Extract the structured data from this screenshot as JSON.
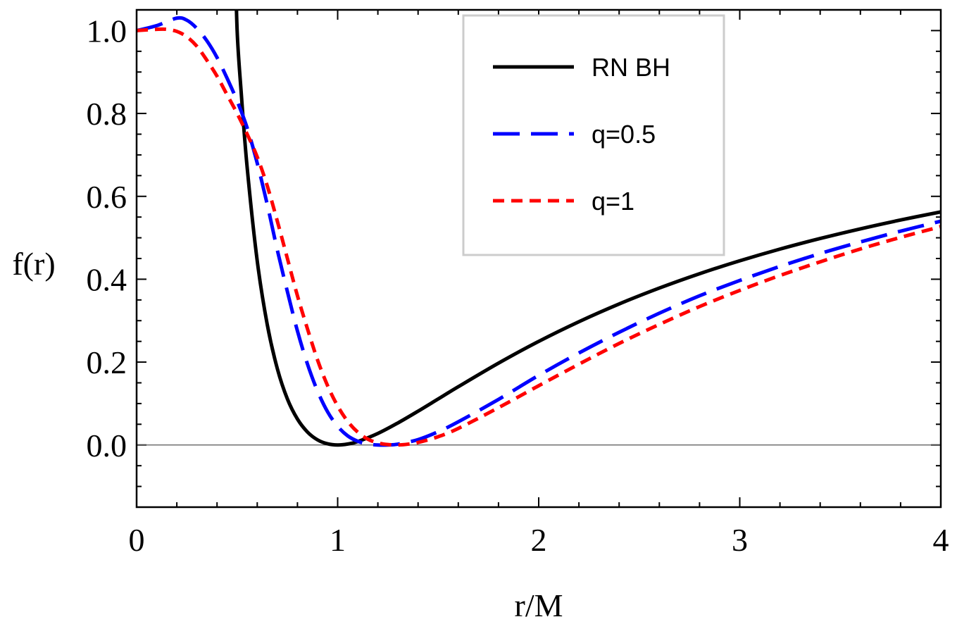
{
  "chart_data": {
    "type": "line",
    "title": "",
    "xlabel": "r/M",
    "ylabel": "f(r)",
    "xlim": [
      0,
      4
    ],
    "ylim": [
      -0.15,
      1.05
    ],
    "x_ticks": [
      {
        "value": 0,
        "label": "0"
      },
      {
        "value": 1,
        "label": "1"
      },
      {
        "value": 2,
        "label": "2"
      },
      {
        "value": 3,
        "label": "3"
      },
      {
        "value": 4,
        "label": "4"
      }
    ],
    "y_ticks": [
      {
        "value": 0.0,
        "label": "0.0"
      },
      {
        "value": 0.2,
        "label": "0.2"
      },
      {
        "value": 0.4,
        "label": "0.4"
      },
      {
        "value": 0.6,
        "label": "0.6"
      },
      {
        "value": 0.8,
        "label": "0.8"
      },
      {
        "value": 1.0,
        "label": "1.0"
      }
    ],
    "x_minor_step": 0.2,
    "y_minor_step": 0.05,
    "reference_line_y": 0,
    "grid": false,
    "legend_position": "top-center",
    "series": [
      {
        "name": "RN BH",
        "color": "#000000",
        "dash": "solid",
        "x": [
          0.5,
          0.52,
          0.55,
          0.6,
          0.65,
          0.7,
          0.75,
          0.8,
          0.85,
          0.9,
          0.95,
          1.0,
          1.05,
          1.1,
          1.2,
          1.3,
          1.4,
          1.5,
          1.6,
          1.8,
          2.0,
          2.2,
          2.4,
          2.6,
          2.8,
          3.0,
          3.2,
          3.4,
          3.6,
          3.8,
          4.0
        ],
        "y": [
          1.0,
          0.852,
          0.669,
          0.444,
          0.29,
          0.184,
          0.111,
          0.0625,
          0.0311,
          0.0123,
          0.0028,
          0.0,
          0.0023,
          0.0083,
          0.0278,
          0.0533,
          0.0816,
          0.1111,
          0.1406,
          0.1975,
          0.25,
          0.2975,
          0.3403,
          0.3787,
          0.4133,
          0.4444,
          0.4727,
          0.4983,
          0.5216,
          0.5429,
          0.5625
        ]
      },
      {
        "name": "q=0.5",
        "color": "#0000ff",
        "dash": "long-dash",
        "x": [
          0,
          0.1,
          0.2,
          0.25,
          0.3,
          0.35,
          0.4,
          0.45,
          0.5,
          0.55,
          0.6,
          0.65,
          0.7,
          0.75,
          0.8,
          0.85,
          0.9,
          0.95,
          1.0,
          1.05,
          1.1,
          1.15,
          1.2,
          1.25,
          1.3,
          1.4,
          1.5,
          1.6,
          1.8,
          2.0,
          2.2,
          2.4,
          2.6,
          2.8,
          3.0,
          3.2,
          3.4,
          3.6,
          3.8,
          4.0
        ],
        "y": [
          1.0,
          1.012,
          1.03,
          1.025,
          1.005,
          0.975,
          0.935,
          0.885,
          0.83,
          0.765,
          0.68,
          0.58,
          0.47,
          0.37,
          0.275,
          0.195,
          0.13,
          0.08,
          0.045,
          0.022,
          0.009,
          0.0025,
          0.0,
          0.0,
          0.002,
          0.013,
          0.032,
          0.056,
          0.11,
          0.168,
          0.222,
          0.272,
          0.318,
          0.36,
          0.397,
          0.431,
          0.462,
          0.49,
          0.516,
          0.54
        ]
      },
      {
        "name": "q=1",
        "color": "#ff0000",
        "dash": "short-dash",
        "x": [
          0,
          0.1,
          0.15,
          0.2,
          0.25,
          0.3,
          0.35,
          0.4,
          0.45,
          0.5,
          0.55,
          0.6,
          0.65,
          0.7,
          0.75,
          0.8,
          0.85,
          0.9,
          0.95,
          1.0,
          1.05,
          1.1,
          1.15,
          1.2,
          1.25,
          1.3,
          1.35,
          1.4,
          1.5,
          1.6,
          1.8,
          2.0,
          2.2,
          2.4,
          2.6,
          2.8,
          3.0,
          3.2,
          3.4,
          3.6,
          3.8,
          4.0
        ],
        "y": [
          1.0,
          1.003,
          1.003,
          0.998,
          0.985,
          0.962,
          0.928,
          0.89,
          0.845,
          0.8,
          0.75,
          0.695,
          0.625,
          0.54,
          0.45,
          0.36,
          0.28,
          0.205,
          0.143,
          0.094,
          0.057,
          0.031,
          0.014,
          0.005,
          0.001,
          0.0,
          0.002,
          0.006,
          0.02,
          0.04,
          0.09,
          0.143,
          0.195,
          0.245,
          0.291,
          0.334,
          0.373,
          0.409,
          0.442,
          0.473,
          0.501,
          0.527
        ]
      }
    ]
  }
}
